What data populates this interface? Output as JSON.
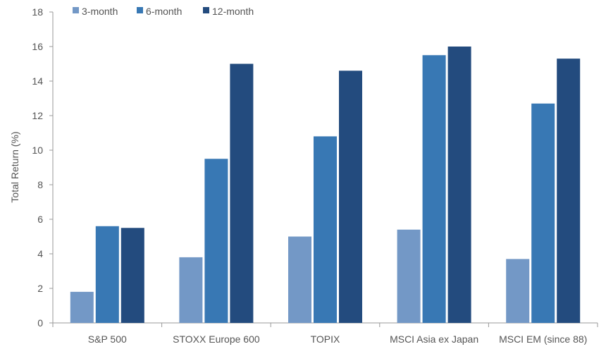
{
  "chart_data": {
    "type": "bar",
    "categories": [
      "S&P 500",
      "STOXX Europe 600",
      "TOPIX",
      "MSCI Asia ex Japan",
      "MSCI EM (since 88)"
    ],
    "series": [
      {
        "name": "3-month",
        "color": "#7398c6",
        "values": [
          1.8,
          3.8,
          5.0,
          5.4,
          3.7
        ]
      },
      {
        "name": "6-month",
        "color": "#3878b4",
        "values": [
          5.6,
          9.5,
          10.8,
          15.5,
          12.7
        ]
      },
      {
        "name": "12-month",
        "color": "#234b7e",
        "values": [
          5.5,
          15.0,
          14.6,
          16.0,
          15.3
        ]
      }
    ],
    "ylabel": "Total Return (%)",
    "ylim": [
      0,
      18
    ],
    "yticks": [
      "0",
      "2",
      "4",
      "6",
      "8",
      "10",
      "12",
      "14",
      "16",
      "18"
    ],
    "legend_position": "top-left",
    "grid": false
  }
}
